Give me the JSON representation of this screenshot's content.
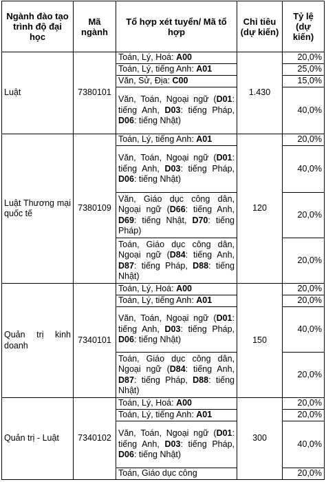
{
  "headers": {
    "major": "Ngành đào tạo trình độ đại học",
    "code": "Mã ngành",
    "combination": "Tổ hợp xét tuyển/ Mã tổ hợp",
    "quota": "Chỉ tiêu (dự kiến)",
    "ratio": "Tỷ lệ (dự kiến)"
  },
  "groups": [
    {
      "major": "Luật",
      "code": "7380101",
      "quota": "1.430",
      "rows": [
        {
          "parts": [
            {
              "t": "Toán, Lý, Hoá: "
            },
            {
              "t": "A00",
              "b": true
            }
          ],
          "ratio": "20,0%"
        },
        {
          "parts": [
            {
              "t": "Toán, Lý, tiếng Anh: "
            },
            {
              "t": "A01",
              "b": true
            }
          ],
          "ratio": "25,0%"
        },
        {
          "parts": [
            {
              "t": "Văn, Sử, Địa: "
            },
            {
              "t": "C00",
              "b": true
            }
          ],
          "ratio": "15,0%"
        },
        {
          "parts": [
            {
              "t": "Văn, Toán, Ngoại ngữ ("
            },
            {
              "t": "D01",
              "b": true
            },
            {
              "t": ": tiếng Anh, "
            },
            {
              "t": "D03",
              "b": true
            },
            {
              "t": ": tiếng Pháp, "
            },
            {
              "t": "D06",
              "b": true
            },
            {
              "t": ": tiếng Nhật)"
            }
          ],
          "ratio": "40,0%"
        }
      ]
    },
    {
      "major": "Luật Thương mại quốc tế",
      "code": "7380109",
      "quota": "120",
      "rows": [
        {
          "parts": [
            {
              "t": "Toán, Lý, tiếng Anh: "
            },
            {
              "t": "A01",
              "b": true
            }
          ],
          "ratio": "20,0%"
        },
        {
          "parts": [
            {
              "t": "Văn, Toán, Ngoại ngữ ("
            },
            {
              "t": "D01",
              "b": true
            },
            {
              "t": ": tiếng Anh, "
            },
            {
              "t": "D03",
              "b": true
            },
            {
              "t": ": tiếng Pháp, "
            },
            {
              "t": "D06",
              "b": true
            },
            {
              "t": ": tiếng Nhật)"
            }
          ],
          "ratio": "40,0%"
        },
        {
          "parts": [
            {
              "t": "Văn, Giáo dục công dân, Ngoại ngữ ("
            },
            {
              "t": "D66",
              "b": true
            },
            {
              "t": ": tiếng Anh, "
            },
            {
              "t": "D69",
              "b": true
            },
            {
              "t": ": tiếng Nhật, "
            },
            {
              "t": "D70",
              "b": true
            },
            {
              "t": ": tiếng Pháp)"
            }
          ],
          "ratio": "20,0%"
        },
        {
          "parts": [
            {
              "t": "Toán, Giáo dục công dân, Ngoại ngữ ("
            },
            {
              "t": "D84",
              "b": true
            },
            {
              "t": ": tiếng Anh, "
            },
            {
              "t": "D87",
              "b": true
            },
            {
              "t": ": tiếng Pháp, "
            },
            {
              "t": "D88",
              "b": true
            },
            {
              "t": ": tiếng Nhật)"
            }
          ],
          "ratio": "20,0%"
        }
      ]
    },
    {
      "major": "Quản trị kinh doanh",
      "code": "7340101",
      "quota": "150",
      "rows": [
        {
          "parts": [
            {
              "t": "Toán, Lý, Hoá: "
            },
            {
              "t": "A00",
              "b": true
            }
          ],
          "ratio": "20,0%"
        },
        {
          "parts": [
            {
              "t": "Toán, Lý, tiếng Anh: "
            },
            {
              "t": "A01",
              "b": true
            }
          ],
          "ratio": "20,0%"
        },
        {
          "parts": [
            {
              "t": "Văn, Toán, Ngoại ngữ ("
            },
            {
              "t": "D01",
              "b": true
            },
            {
              "t": ": tiếng Anh, "
            },
            {
              "t": "D03",
              "b": true
            },
            {
              "t": ": tiếng Pháp, "
            },
            {
              "t": "D06",
              "b": true
            },
            {
              "t": ": tiếng Nhật)"
            }
          ],
          "ratio": "40,0%"
        },
        {
          "parts": [
            {
              "t": "Toán, Giáo dục công dân, Ngoại ngữ ("
            },
            {
              "t": "D84",
              "b": true
            },
            {
              "t": ": tiếng Anh, "
            },
            {
              "t": "D87",
              "b": true
            },
            {
              "t": ": tiếng Pháp, "
            },
            {
              "t": "D88",
              "b": true
            },
            {
              "t": ": tiếng Nhật)"
            }
          ],
          "ratio": "20,0%"
        }
      ]
    },
    {
      "major": "Quản trị - Luật",
      "code": "7340102",
      "quota": "300",
      "rows": [
        {
          "parts": [
            {
              "t": "Toán, Lý, Hoá: "
            },
            {
              "t": "A00",
              "b": true
            }
          ],
          "ratio": "20,0%"
        },
        {
          "parts": [
            {
              "t": "Toán, Lý, tiếng Anh: "
            },
            {
              "t": "A01",
              "b": true
            }
          ],
          "ratio": "20,0%"
        },
        {
          "parts": [
            {
              "t": "Văn, Toán, Ngoại ngữ ("
            },
            {
              "t": "D01",
              "b": true
            },
            {
              "t": ": tiếng Anh, "
            },
            {
              "t": "D03",
              "b": true
            },
            {
              "t": ": tiếng Pháp, "
            },
            {
              "t": "D06",
              "b": true
            },
            {
              "t": ": tiếng Nhật)"
            }
          ],
          "ratio": "40,0%"
        },
        {
          "parts": [
            {
              "t": "Toán, Giáo dục công"
            }
          ],
          "ratio": "20,0%"
        }
      ]
    }
  ]
}
